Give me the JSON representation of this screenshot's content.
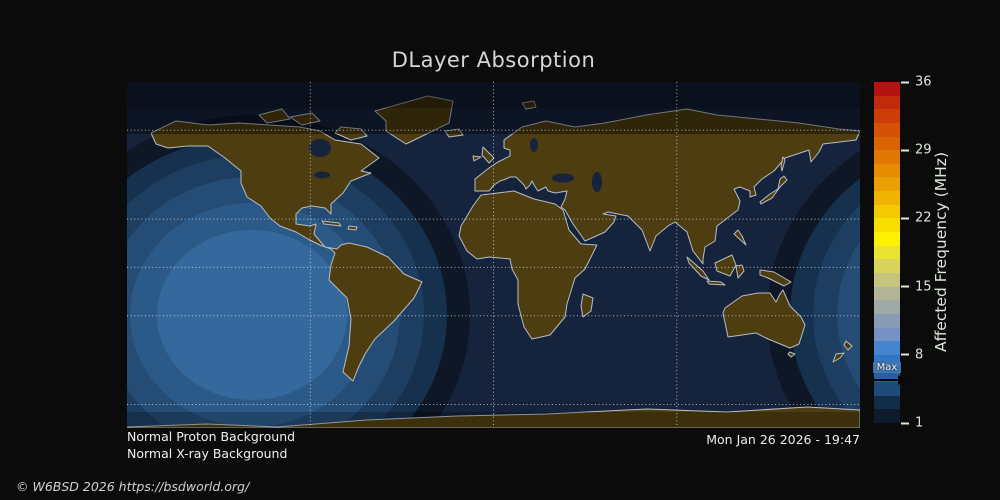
{
  "title": "DLayer Absorption",
  "status": {
    "line1": "Normal Proton Background",
    "line2": "Normal X-ray Background"
  },
  "timestamp": "Mon Jan 26 2026 - 19:47",
  "copyright": "© W6BSD 2026 https://bsdworld.org/",
  "colorbar": {
    "label": "Affected Frequency (MHz)",
    "unit": "MHz",
    "ticks": [
      36,
      29,
      22,
      15,
      8,
      1
    ],
    "range_max": 36,
    "range_min": 1,
    "max_marker_label": "Max",
    "max_marker_value": 6,
    "stops": [
      "#b61211",
      "#c22a0c",
      "#cc3d08",
      "#d45106",
      "#da6404",
      "#e07803",
      "#e58c03",
      "#eaa002",
      "#efb402",
      "#f3c902",
      "#f8dd01",
      "#fcf201",
      "#e9e433",
      "#d9d45c",
      "#c6c47e",
      "#b2b495",
      "#9daaa6",
      "#8a9cb5",
      "#7691c4",
      "#4585cf",
      "#2f77c4",
      "#28619f",
      "#1f4a78",
      "#132c47",
      "#0d1b2c"
    ]
  },
  "colors": {
    "bg": "#0b0b0b",
    "ocean": "#16233c",
    "ring1": "#35689d",
    "ring2": "#2c5a88",
    "ring3": "#244c75",
    "ring4": "#1d3e60",
    "ring5": "#16314d",
    "ring6": "#0d1726",
    "land": "#4d3d10",
    "coast": "#b6bec5",
    "grid": "#e2e8ee"
  }
}
